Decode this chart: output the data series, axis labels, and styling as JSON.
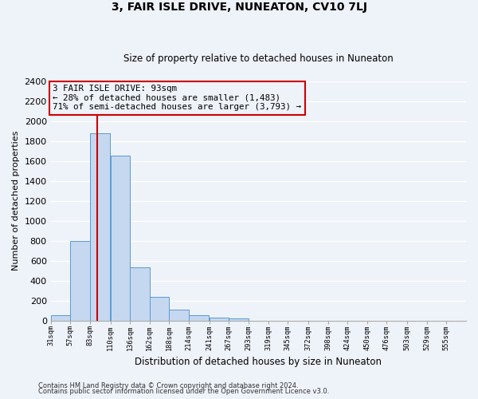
{
  "title": "3, FAIR ISLE DRIVE, NUNEATON, CV10 7LJ",
  "subtitle": "Size of property relative to detached houses in Nuneaton",
  "xlabel": "Distribution of detached houses by size in Nuneaton",
  "ylabel": "Number of detached properties",
  "bar_values": [
    55,
    800,
    1880,
    1650,
    530,
    240,
    110,
    55,
    30,
    20,
    0,
    0,
    0,
    0,
    0,
    0,
    0,
    0,
    0,
    0
  ],
  "bin_labels": [
    "31sqm",
    "57sqm",
    "83sqm",
    "110sqm",
    "136sqm",
    "162sqm",
    "188sqm",
    "214sqm",
    "241sqm",
    "267sqm",
    "293sqm",
    "319sqm",
    "345sqm",
    "372sqm",
    "398sqm",
    "424sqm",
    "450sqm",
    "476sqm",
    "503sqm",
    "529sqm",
    "555sqm"
  ],
  "bin_edges": [
    31,
    57,
    83,
    110,
    136,
    162,
    188,
    214,
    241,
    267,
    293,
    319,
    345,
    372,
    398,
    424,
    450,
    476,
    503,
    529,
    555
  ],
  "bar_color": "#c5d8f0",
  "bar_edge_color": "#5a9ad4",
  "vertical_line_x": 93,
  "vertical_line_color": "#cc0000",
  "annotation_text": "3 FAIR ISLE DRIVE: 93sqm\n← 28% of detached houses are smaller (1,483)\n71% of semi-detached houses are larger (3,793) →",
  "annotation_box_edge_color": "#cc0000",
  "ylim": [
    0,
    2400
  ],
  "ytick_step": 200,
  "background_color": "#eef2f9",
  "grid_color": "#ffffff",
  "footer_line1": "Contains HM Land Registry data © Crown copyright and database right 2024.",
  "footer_line2": "Contains public sector information licensed under the Open Government Licence v3.0."
}
